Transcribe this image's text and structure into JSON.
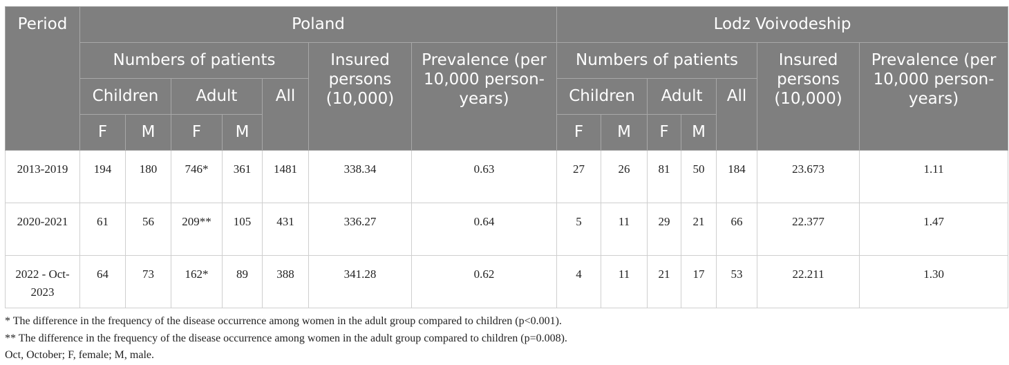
{
  "table": {
    "period_header": "Period",
    "groups": [
      {
        "name": "Poland",
        "patients": "Numbers of patients",
        "children": "Children",
        "adult": "Adult",
        "all": "All",
        "sub": [
          "F",
          "M",
          "F",
          "M"
        ],
        "insured": "Insured persons (10,000)",
        "prevalence": "Prevalence (per 10,000 person-years)"
      },
      {
        "name": "Lodz Voivodeship",
        "patients": "Numbers of patients",
        "children": "Children",
        "adult": "Adult",
        "all": "All",
        "sub": [
          "F",
          "M",
          "F",
          "M"
        ],
        "insured": "Insured persons (10,000)",
        "prevalence": "Prevalence (per 10,000 person-years)"
      }
    ],
    "rows": [
      [
        "2013-2019",
        "194",
        "180",
        "746*",
        "361",
        "1481",
        "338.34",
        "0.63",
        "27",
        "26",
        "81",
        "50",
        "184",
        "23.673",
        "1.11"
      ],
      [
        "2020-2021",
        "61",
        "56",
        "209**",
        "105",
        "431",
        "336.27",
        "0.64",
        "5",
        "11",
        "29",
        "21",
        "66",
        "22.377",
        "1.47"
      ],
      [
        "2022 - Oct-2023",
        "64",
        "73",
        "162*",
        "89",
        "388",
        "341.28",
        "0.62",
        "4",
        "11",
        "21",
        "17",
        "53",
        "22.211",
        "1.30"
      ]
    ],
    "footnotes": [
      "* The difference in the frequency of the disease occurrence among women in the adult group compared to children (p<0.001).",
      "** The difference in the frequency of the disease occurrence among women in the adult group compared to children (p=0.008).",
      "Oct, October; F, female; M, male."
    ]
  }
}
